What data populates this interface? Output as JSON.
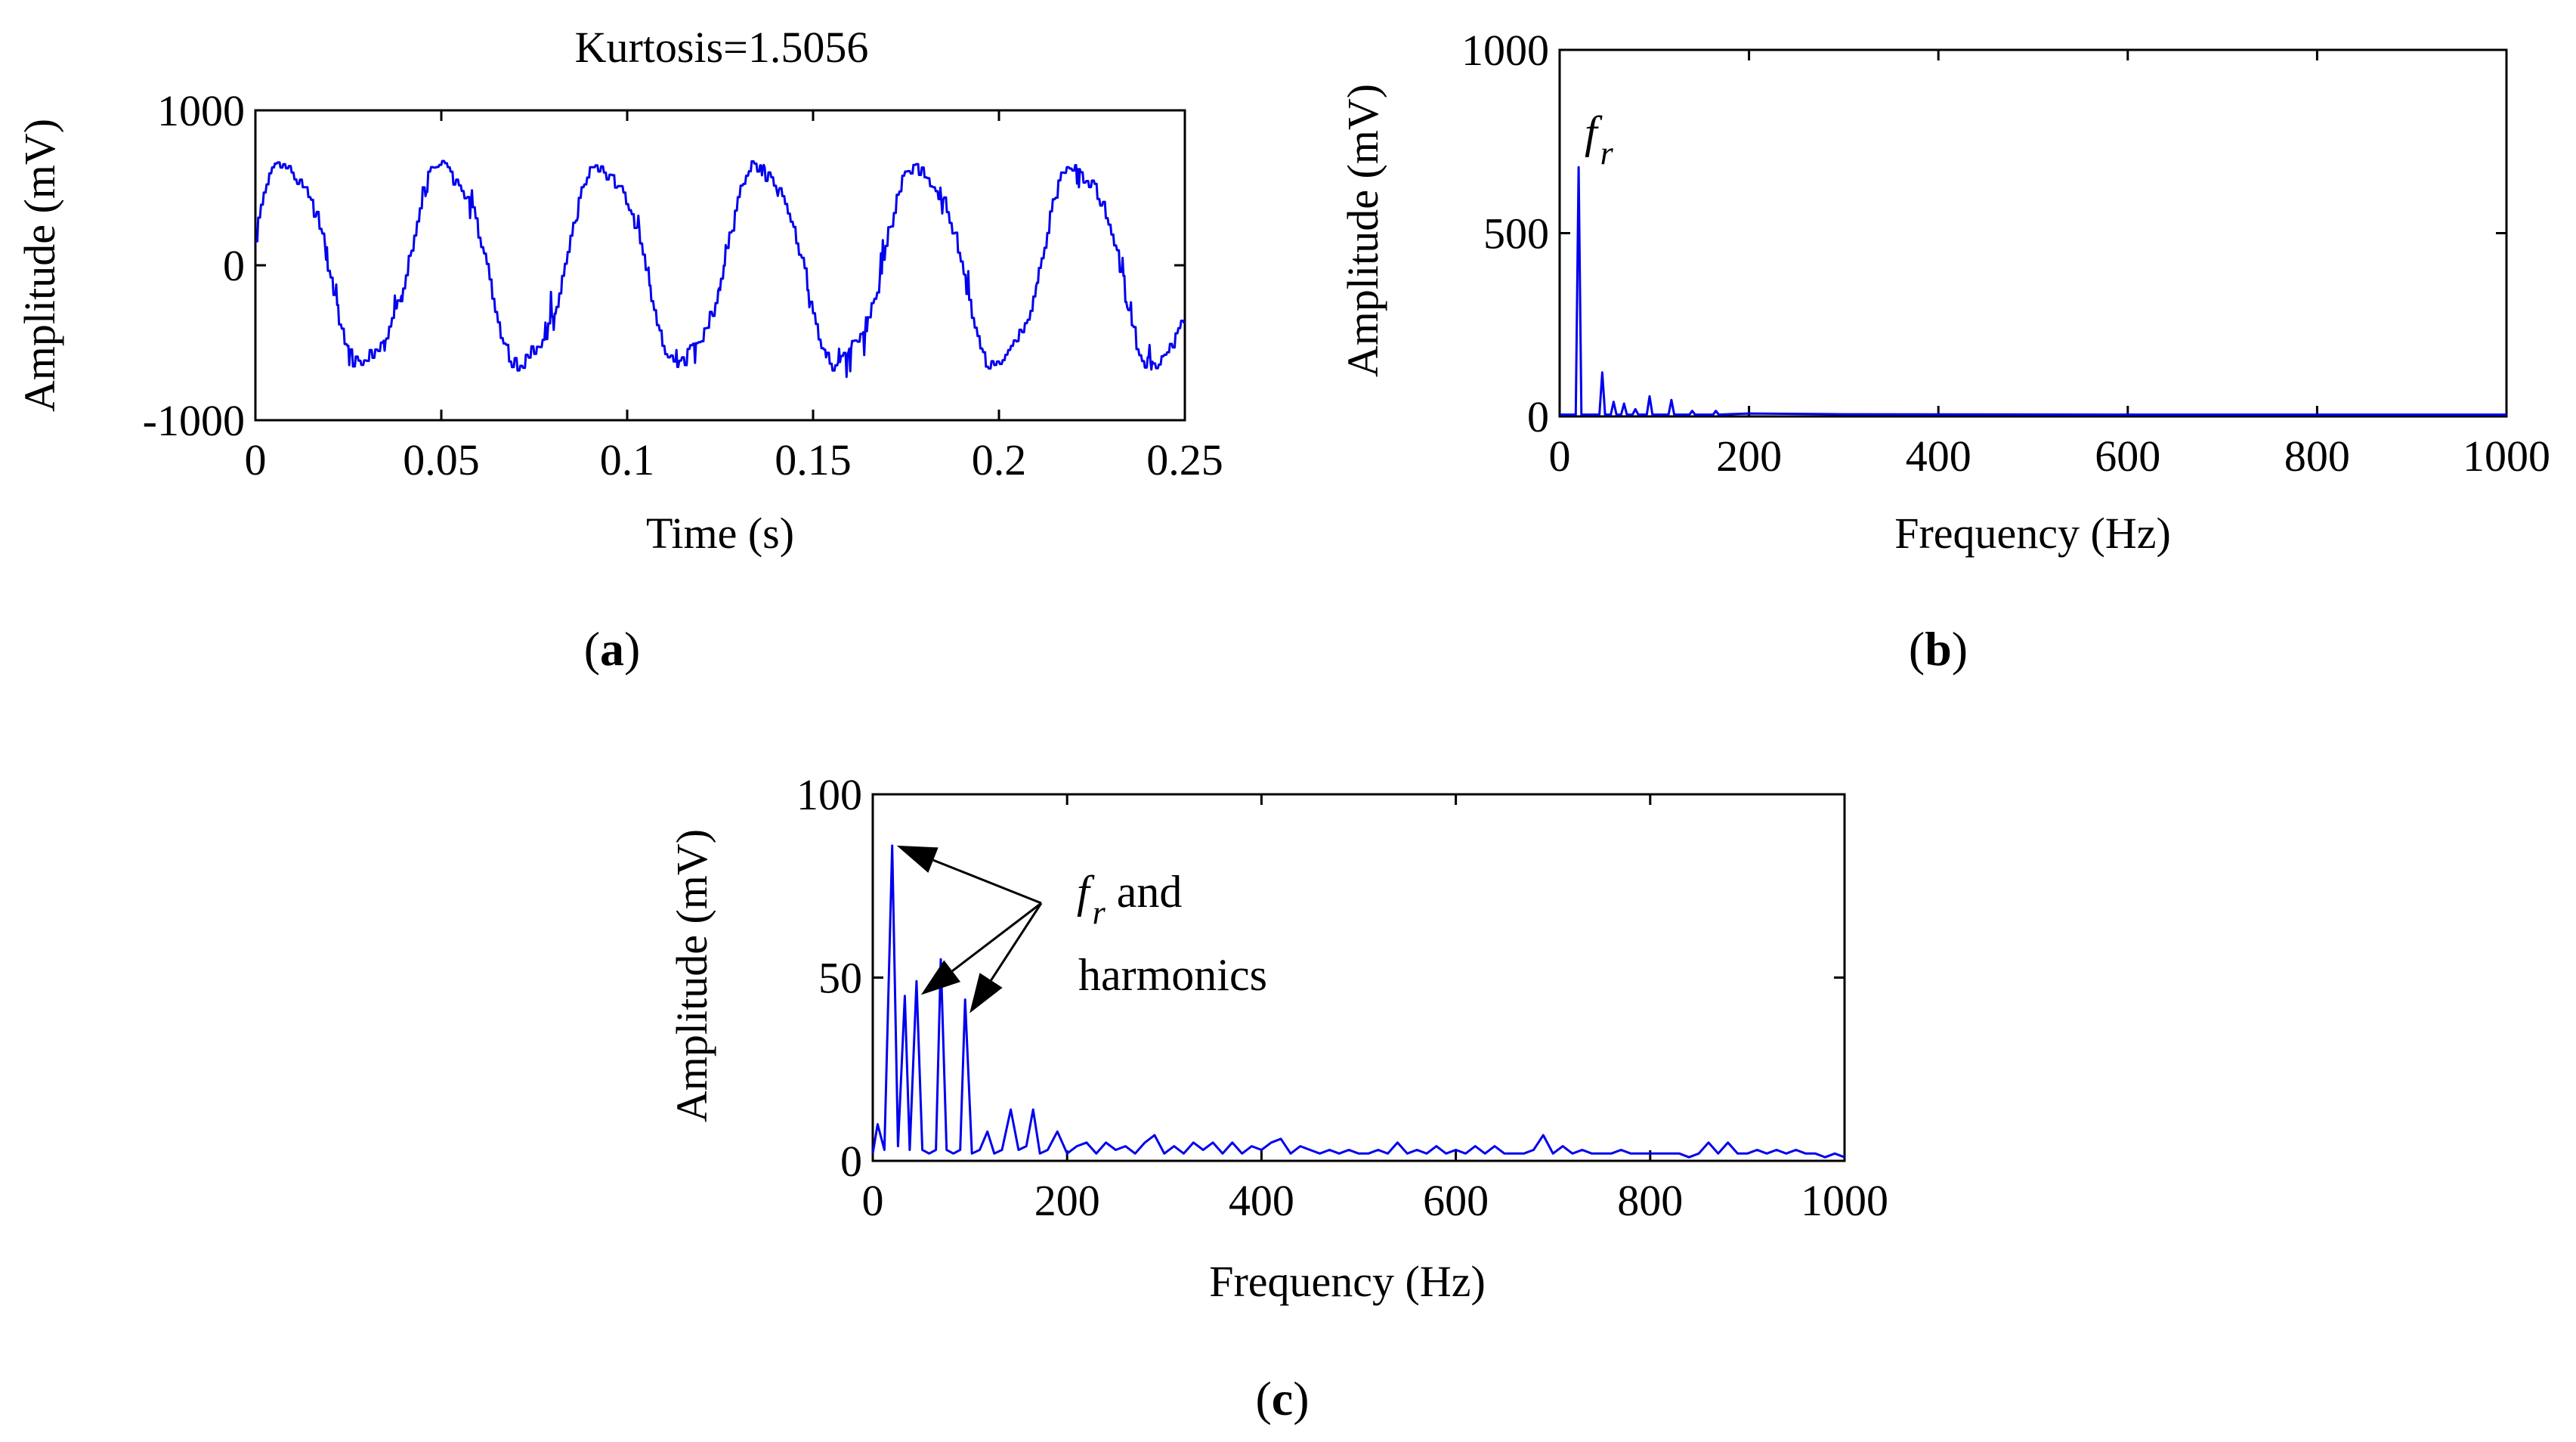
{
  "colors": {
    "series": "#0000ee",
    "axis": "#000000",
    "background": "#ffffff"
  },
  "chart_data": [
    {
      "id": "a",
      "type": "line",
      "caption_letter": "a",
      "title": "Kurtosis=1.5056",
      "xlabel": "Time (s)",
      "ylabel": "Amplitude (mV)",
      "xlim": [
        0,
        0.25
      ],
      "ylim": [
        -1000,
        1000
      ],
      "xticks": [
        0,
        0.05,
        0.1,
        0.15,
        0.2,
        0.25
      ],
      "xtick_labels": [
        "0",
        "0.05",
        "0.1",
        "0.15",
        "0.2",
        "0.25"
      ],
      "yticks": [
        -1000,
        0,
        1000
      ],
      "ytick_labels": [
        "-1000",
        "0",
        "1000"
      ],
      "signal": {
        "shape": "quasi-sinusoid with sharp step noise",
        "approx_frequency_hz": 23.5,
        "approx_amplitude_mv": 650,
        "start_value_mv": 200
      }
    },
    {
      "id": "b",
      "type": "line",
      "caption_letter": "b",
      "xlabel": "Frequency (Hz)",
      "ylabel": "Amplitude (mV)",
      "xlim": [
        0,
        1000
      ],
      "ylim": [
        0,
        1000
      ],
      "xticks": [
        0,
        200,
        400,
        600,
        800,
        1000
      ],
      "xtick_labels": [
        "0",
        "200",
        "400",
        "600",
        "800",
        "1000"
      ],
      "yticks": [
        0,
        500,
        1000
      ],
      "ytick_labels": [
        "0",
        "500",
        "1000"
      ],
      "peaks": [
        {
          "x": 20,
          "y": 680
        },
        {
          "x": 45,
          "y": 120
        },
        {
          "x": 57,
          "y": 40
        },
        {
          "x": 68,
          "y": 35
        },
        {
          "x": 80,
          "y": 20
        },
        {
          "x": 95,
          "y": 55
        },
        {
          "x": 118,
          "y": 45
        },
        {
          "x": 140,
          "y": 15
        },
        {
          "x": 165,
          "y": 15
        },
        {
          "x": 200,
          "y": 8
        },
        {
          "x": 300,
          "y": 6
        },
        {
          "x": 600,
          "y": 5
        },
        {
          "x": 1000,
          "y": 5
        }
      ],
      "annotation": {
        "base": "f",
        "subscript": "r"
      }
    },
    {
      "id": "c",
      "type": "line",
      "caption_letter": "c",
      "xlabel": "Frequency (Hz)",
      "ylabel": "Amplitude (mV)",
      "xlim": [
        0,
        1000
      ],
      "ylim": [
        0,
        100
      ],
      "xticks": [
        0,
        200,
        400,
        600,
        800,
        1000
      ],
      "xtick_labels": [
        "0",
        "200",
        "400",
        "600",
        "800",
        "1000"
      ],
      "yticks": [
        0,
        50,
        100
      ],
      "ytick_labels": [
        "0",
        "50",
        "100"
      ],
      "points": [
        [
          0,
          2
        ],
        [
          5,
          10
        ],
        [
          12,
          3
        ],
        [
          20,
          86
        ],
        [
          26,
          4
        ],
        [
          33,
          45
        ],
        [
          38,
          3
        ],
        [
          45,
          49
        ],
        [
          51,
          3
        ],
        [
          58,
          2
        ],
        [
          65,
          3
        ],
        [
          70,
          55
        ],
        [
          76,
          3
        ],
        [
          83,
          2
        ],
        [
          90,
          3
        ],
        [
          95,
          44
        ],
        [
          102,
          2
        ],
        [
          110,
          3
        ],
        [
          118,
          8
        ],
        [
          125,
          2
        ],
        [
          133,
          3
        ],
        [
          142,
          14
        ],
        [
          150,
          3
        ],
        [
          158,
          4
        ],
        [
          165,
          14
        ],
        [
          172,
          2
        ],
        [
          180,
          3
        ],
        [
          190,
          8
        ],
        [
          200,
          2
        ],
        [
          210,
          4
        ],
        [
          220,
          5
        ],
        [
          230,
          2
        ],
        [
          240,
          5
        ],
        [
          250,
          3
        ],
        [
          260,
          4
        ],
        [
          270,
          2
        ],
        [
          280,
          5
        ],
        [
          290,
          7
        ],
        [
          300,
          2
        ],
        [
          310,
          4
        ],
        [
          320,
          2
        ],
        [
          330,
          5
        ],
        [
          340,
          3
        ],
        [
          350,
          5
        ],
        [
          360,
          2
        ],
        [
          370,
          5
        ],
        [
          380,
          2
        ],
        [
          390,
          4
        ],
        [
          400,
          3
        ],
        [
          410,
          5
        ],
        [
          420,
          6
        ],
        [
          430,
          2
        ],
        [
          440,
          4
        ],
        [
          450,
          3
        ],
        [
          460,
          2
        ],
        [
          470,
          3
        ],
        [
          480,
          2
        ],
        [
          490,
          3
        ],
        [
          500,
          2
        ],
        [
          510,
          2
        ],
        [
          520,
          3
        ],
        [
          530,
          2
        ],
        [
          540,
          5
        ],
        [
          550,
          2
        ],
        [
          560,
          3
        ],
        [
          570,
          2
        ],
        [
          580,
          4
        ],
        [
          590,
          2
        ],
        [
          600,
          3
        ],
        [
          610,
          2
        ],
        [
          620,
          4
        ],
        [
          630,
          2
        ],
        [
          640,
          4
        ],
        [
          650,
          2
        ],
        [
          660,
          2
        ],
        [
          670,
          2
        ],
        [
          680,
          3
        ],
        [
          690,
          7
        ],
        [
          700,
          2
        ],
        [
          710,
          4
        ],
        [
          720,
          2
        ],
        [
          730,
          3
        ],
        [
          740,
          2
        ],
        [
          750,
          2
        ],
        [
          760,
          2
        ],
        [
          770,
          3
        ],
        [
          780,
          2
        ],
        [
          790,
          2
        ],
        [
          800,
          2
        ],
        [
          810,
          2
        ],
        [
          820,
          2
        ],
        [
          830,
          2
        ],
        [
          840,
          1
        ],
        [
          850,
          2
        ],
        [
          860,
          5
        ],
        [
          870,
          2
        ],
        [
          880,
          5
        ],
        [
          890,
          2
        ],
        [
          900,
          2
        ],
        [
          910,
          3
        ],
        [
          920,
          2
        ],
        [
          930,
          3
        ],
        [
          940,
          2
        ],
        [
          950,
          3
        ],
        [
          960,
          2
        ],
        [
          970,
          2
        ],
        [
          980,
          1
        ],
        [
          990,
          2
        ],
        [
          1000,
          1
        ]
      ],
      "annotation": {
        "base": "f",
        "subscript": "r",
        "line1_rest": " and",
        "line2": "harmonics"
      },
      "arrow_targets": [
        [
          20,
          86
        ],
        [
          45,
          49
        ],
        [
          95,
          44
        ]
      ]
    }
  ]
}
